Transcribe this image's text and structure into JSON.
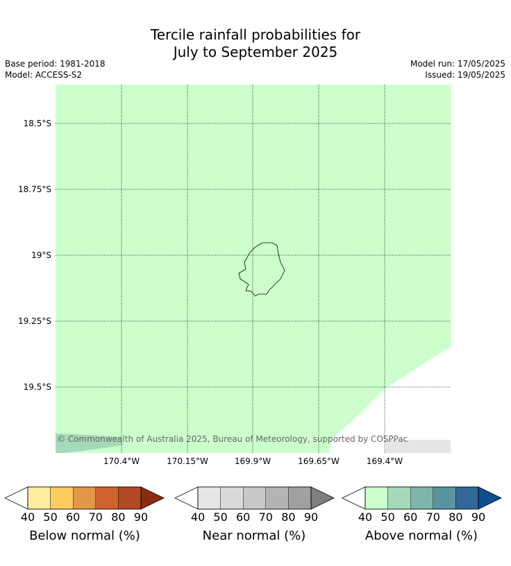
{
  "title": {
    "line1": "Tercile rainfall probabilities for",
    "line2": "July to September 2025"
  },
  "meta": {
    "base_period": "Base period: 1981-2018",
    "model": "Model: ACCESS-S2",
    "model_run": "Model run: 17/05/2025",
    "issued": "Issued: 19/05/2025"
  },
  "map": {
    "lat_labels": [
      "18.5°S",
      "18.75°S",
      "19°S",
      "19.25°S",
      "19.5°S"
    ],
    "lon_labels": [
      "170.4°W",
      "170.15°W",
      "169.9°W",
      "169.65°W",
      "169.4°W"
    ],
    "copyright": "© Commonwealth of Australia 2025, Bureau of Meteorology, supported by COSPPac",
    "dominant_category": "Above normal",
    "dominant_range_pct": "40-50",
    "colors": {
      "above_40_50": "#ccffcc",
      "above_50_60": "#a6d9bb",
      "near_40_50": "#e5e5e5",
      "no_signal": "#ffffff"
    }
  },
  "colorbars": [
    {
      "label": "Below normal (%)",
      "ticks": [
        "40",
        "50",
        "60",
        "70",
        "80",
        "90"
      ],
      "colors": [
        "#ffffff",
        "#ffeda0",
        "#fecc5c",
        "#e3974a",
        "#d0622f",
        "#b34a25",
        "#8c2d13"
      ]
    },
    {
      "label": "Near normal (%)",
      "ticks": [
        "40",
        "50",
        "60",
        "70",
        "80",
        "90"
      ],
      "colors": [
        "#ffffff",
        "#e5e5e5",
        "#d9d9d9",
        "#c8c8c8",
        "#b4b4b4",
        "#a0a0a0",
        "#7f7f7f"
      ]
    },
    {
      "label": "Above normal (%)",
      "ticks": [
        "40",
        "50",
        "60",
        "70",
        "80",
        "90"
      ],
      "colors": [
        "#ffffff",
        "#ccffcc",
        "#a6d9bb",
        "#7fb5ac",
        "#5a94a0",
        "#336699",
        "#0f4f8c"
      ]
    }
  ]
}
